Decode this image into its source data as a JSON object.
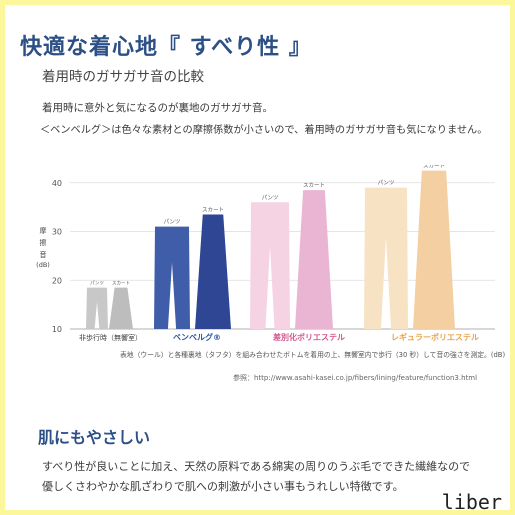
{
  "page": {
    "title": "快適な着心地『 すべり性 』",
    "subtitle": "着用時のガサガサ音の比較",
    "paragraph_lines": [
      "着用時に意外と気になるのが裏地のガサガサ音。",
      "＜ベンベルグ＞は色々な素材との摩擦係数が小さいので、着用時のガサガサ音も気になりません。"
    ],
    "caption": "表地（ウール）と各種裏地（タフタ）を組み合わせたボトムを着用の上、無響室内で歩行（30 秒）して音の強さを測定。(dB)",
    "reference": "参照：http://www.asahi-kasei.co.jp/fibers/lining/feature/function3.html",
    "section2_title": "肌にもやさしい",
    "section2_lines": [
      "すべり性が良いことに加え、天然の原料である綿実の周りのうぶ毛でできた繊維なので",
      "優しくさわやかな肌ざわりで肌への刺激が小さい事もうれしい特徴です。"
    ],
    "watermark": "liber"
  },
  "chart_data": {
    "type": "bar",
    "ylabel": "摩擦音",
    "yunit": "(dB)",
    "ylim": [
      10,
      42
    ],
    "yticks": [
      10,
      20,
      30,
      40
    ],
    "grid": true,
    "categories": [
      {
        "name": "非歩行時（無響室）",
        "color": "#444444",
        "labels": [
          "パンツ",
          "スカート"
        ],
        "values": [
          18.5,
          18.5
        ],
        "fills": [
          "#c8c8c8",
          "#bdbdbd"
        ]
      },
      {
        "name": "ベンベルグ®",
        "color": "#2a57a8",
        "labels": [
          "パンツ",
          "スカート"
        ],
        "values": [
          31,
          33.5
        ],
        "fills": [
          "#3f5da8",
          "#2e4693"
        ]
      },
      {
        "name": "差別化ポリエステル",
        "color": "#d4568f",
        "labels": [
          "パンツ",
          "スカート"
        ],
        "values": [
          36,
          38.5
        ],
        "fills": [
          "#f6d3e3",
          "#eab5d2"
        ]
      },
      {
        "name": "レギュラーポリエステル",
        "color": "#e9a24a",
        "labels": [
          "パンツ",
          "スカート"
        ],
        "values": [
          39,
          42.5
        ],
        "fills": [
          "#f7e3c4",
          "#f3cfa1"
        ]
      }
    ]
  }
}
